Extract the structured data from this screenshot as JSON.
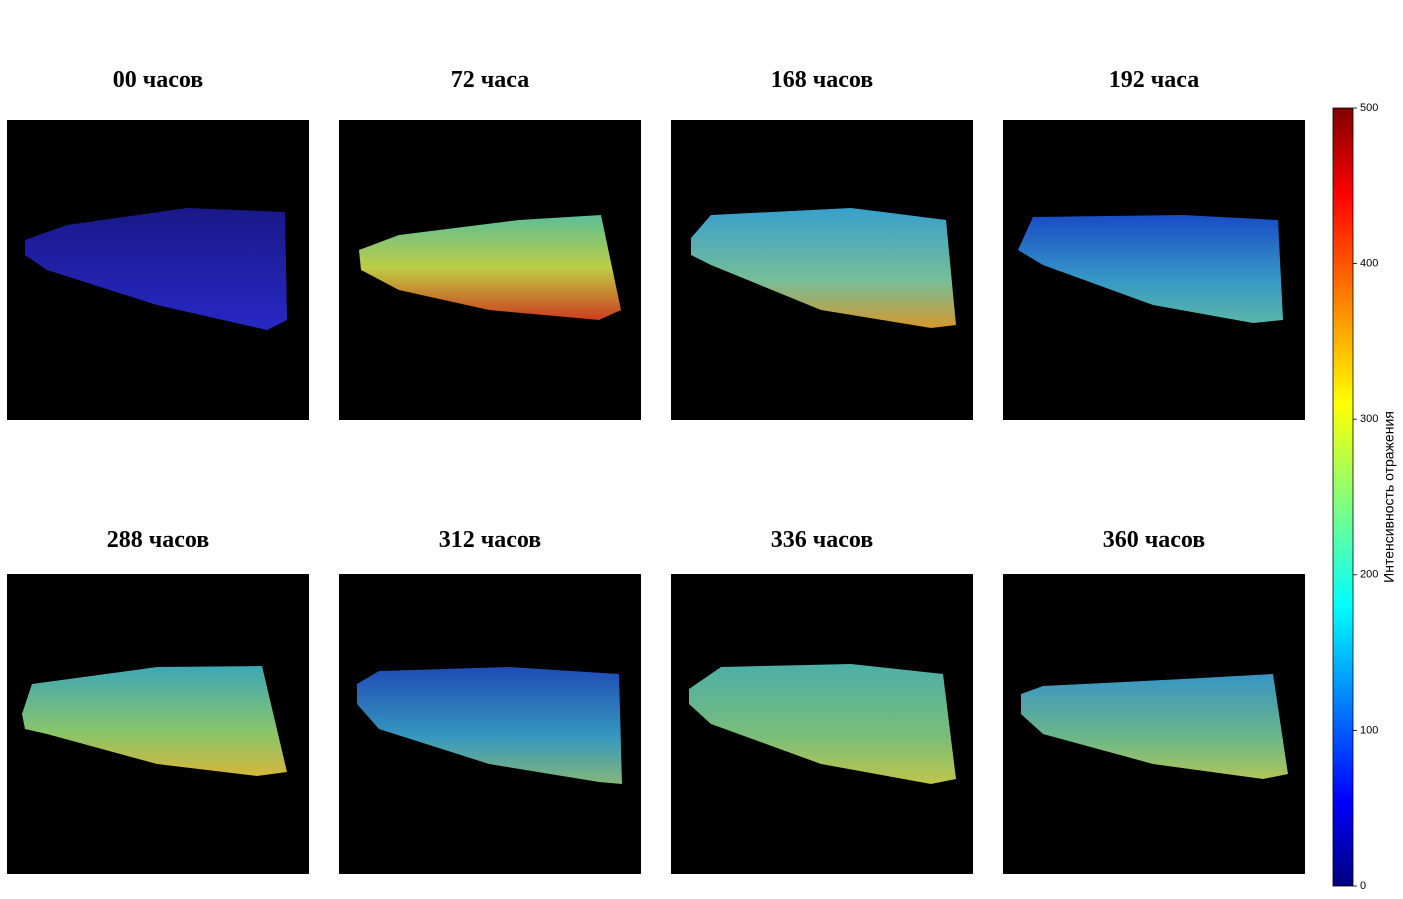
{
  "panels": [
    {
      "title": "00 часов"
    },
    {
      "title": "72 часа"
    },
    {
      "title": "168 часов"
    },
    {
      "title": "192 часа"
    },
    {
      "title": "288 часов"
    },
    {
      "title": "312 часов"
    },
    {
      "title": "336 часов"
    },
    {
      "title": "360 часов"
    }
  ],
  "colorbar": {
    "label": "Интенсивность отражения",
    "lim": [
      0,
      500
    ],
    "ticks": [
      0,
      100,
      200,
      300,
      400,
      500
    ]
  }
}
